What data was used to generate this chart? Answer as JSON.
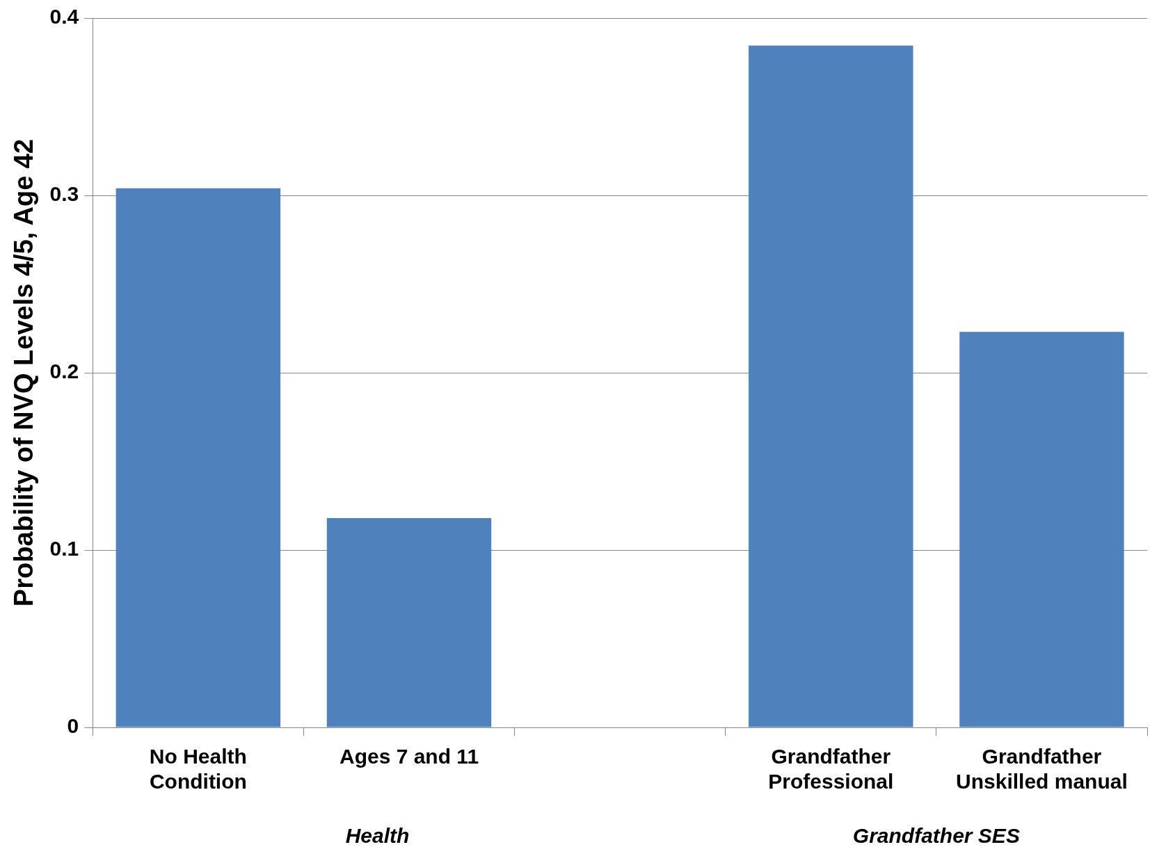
{
  "chart_data": {
    "type": "bar",
    "ylabel": "Probability of NVQ Levels 4/5, Age 42",
    "categories": [
      "No Health\nCondition",
      "Ages 7 and 11",
      null,
      "Grandfather\nProfessional",
      "Grandfather\nUnskilled manual"
    ],
    "values": [
      0.304,
      0.118,
      null,
      0.3845,
      0.223
    ],
    "color": "#4f81bd",
    "ylim": [
      0,
      0.4
    ],
    "yticks": [
      0,
      0.1,
      0.2,
      0.3,
      0.4
    ],
    "grid": "y",
    "annotations": [
      "Health",
      "Grandfather SES"
    ]
  }
}
